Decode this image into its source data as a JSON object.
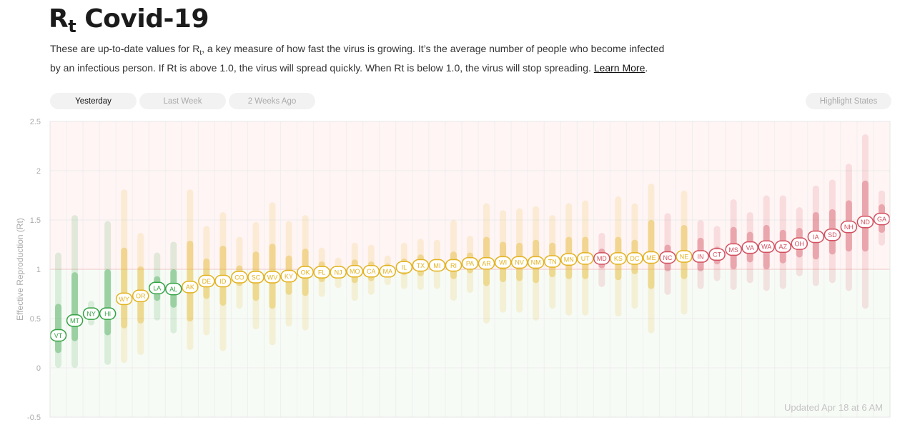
{
  "header": {
    "title_main": "R",
    "title_sub": "t",
    "title_rest": " Covid-19",
    "desc_part1": "These are up-to-date values for R",
    "desc_sub": "t",
    "desc_part2": ", a key measure of how fast the virus is growing. It’s the average number of people who become infected by an infectious person. If Rt is above 1.0, the virus will spread quickly. When Rt is below 1.0, the virus will stop spreading. ",
    "learn_more": "Learn More",
    "desc_end": "."
  },
  "controls": {
    "yesterday": "Yesterday",
    "last_week": "Last Week",
    "two_weeks": "2 Weeks Ago",
    "highlight": "Highlight States"
  },
  "colors": {
    "green": "#35a345",
    "yellow": "#e3b21f",
    "red": "#d2505f"
  },
  "chart_data": {
    "type": "scatter",
    "ylabel": "Effective Reproduction (Rt)",
    "ylim": [
      -0.5,
      2.5
    ],
    "yticks": [
      -0.5,
      0,
      0.5,
      1,
      1.5,
      2,
      2.5
    ],
    "ytick_labels": [
      "-0.5",
      "0",
      "0.5",
      "1",
      "1.5",
      "2",
      "2.5"
    ],
    "reference_line": 1,
    "updated": "Updated Apr 18 at 6 AM",
    "states": [
      {
        "state": "VT",
        "rt": 0.33,
        "hi50": 0.65,
        "lo50": 0.15,
        "hi90": 1.17,
        "lo90": 0.0,
        "color": "green"
      },
      {
        "state": "MT",
        "rt": 0.48,
        "hi50": 0.97,
        "lo50": 0.27,
        "hi90": 1.55,
        "lo90": 0.0,
        "color": "green"
      },
      {
        "state": "NY",
        "rt": 0.55,
        "hi50": 0.6,
        "lo50": 0.5,
        "hi90": 0.68,
        "lo90": 0.43,
        "color": "green"
      },
      {
        "state": "HI",
        "rt": 0.55,
        "hi50": 1.0,
        "lo50": 0.33,
        "hi90": 1.49,
        "lo90": 0.03,
        "color": "green"
      },
      {
        "state": "WY",
        "rt": 0.7,
        "hi50": 1.22,
        "lo50": 0.4,
        "hi90": 1.81,
        "lo90": 0.05,
        "color": "yellow"
      },
      {
        "state": "OR",
        "rt": 0.73,
        "hi50": 1.03,
        "lo50": 0.45,
        "hi90": 1.37,
        "lo90": 0.13,
        "color": "yellow"
      },
      {
        "state": "LA",
        "rt": 0.81,
        "hi50": 0.93,
        "lo50": 0.68,
        "hi90": 1.17,
        "lo90": 0.48,
        "color": "green"
      },
      {
        "state": "AL",
        "rt": 0.8,
        "hi50": 1.0,
        "lo50": 0.61,
        "hi90": 1.28,
        "lo90": 0.35,
        "color": "green"
      },
      {
        "state": "AK",
        "rt": 0.82,
        "hi50": 1.29,
        "lo50": 0.47,
        "hi90": 1.81,
        "lo90": 0.18,
        "color": "yellow"
      },
      {
        "state": "DE",
        "rt": 0.88,
        "hi50": 1.11,
        "lo50": 0.7,
        "hi90": 1.44,
        "lo90": 0.33,
        "color": "yellow"
      },
      {
        "state": "ID",
        "rt": 0.88,
        "hi50": 1.24,
        "lo50": 0.63,
        "hi90": 1.58,
        "lo90": 0.17,
        "color": "yellow"
      },
      {
        "state": "CO",
        "rt": 0.92,
        "hi50": 1.04,
        "lo50": 0.83,
        "hi90": 1.33,
        "lo90": 0.6,
        "color": "yellow"
      },
      {
        "state": "SC",
        "rt": 0.92,
        "hi50": 1.18,
        "lo50": 0.68,
        "hi90": 1.48,
        "lo90": 0.39,
        "color": "yellow"
      },
      {
        "state": "WV",
        "rt": 0.92,
        "hi50": 1.26,
        "lo50": 0.6,
        "hi90": 1.68,
        "lo90": 0.23,
        "color": "yellow"
      },
      {
        "state": "KY",
        "rt": 0.93,
        "hi50": 1.14,
        "lo50": 0.74,
        "hi90": 1.49,
        "lo90": 0.42,
        "color": "yellow"
      },
      {
        "state": "OK",
        "rt": 0.97,
        "hi50": 1.21,
        "lo50": 0.73,
        "hi90": 1.55,
        "lo90": 0.38,
        "color": "yellow"
      },
      {
        "state": "FL",
        "rt": 0.97,
        "hi50": 1.08,
        "lo50": 0.87,
        "hi90": 1.22,
        "lo90": 0.72,
        "color": "yellow"
      },
      {
        "state": "NJ",
        "rt": 0.97,
        "hi50": 1.03,
        "lo50": 0.91,
        "hi90": 1.12,
        "lo90": 0.81,
        "color": "yellow"
      },
      {
        "state": "MO",
        "rt": 0.98,
        "hi50": 1.1,
        "lo50": 0.86,
        "hi90": 1.27,
        "lo90": 0.68,
        "color": "yellow"
      },
      {
        "state": "CA",
        "rt": 0.98,
        "hi50": 1.08,
        "lo50": 0.88,
        "hi90": 1.25,
        "lo90": 0.74,
        "color": "yellow"
      },
      {
        "state": "MA",
        "rt": 0.98,
        "hi50": 1.06,
        "lo50": 0.93,
        "hi90": 1.14,
        "lo90": 0.84,
        "color": "yellow"
      },
      {
        "state": "IL",
        "rt": 1.02,
        "hi50": 1.11,
        "lo50": 0.94,
        "hi90": 1.27,
        "lo90": 0.8,
        "color": "yellow"
      },
      {
        "state": "TX",
        "rt": 1.04,
        "hi50": 1.15,
        "lo50": 0.93,
        "hi90": 1.31,
        "lo90": 0.79,
        "color": "yellow"
      },
      {
        "state": "MI",
        "rt": 1.04,
        "hi50": 1.1,
        "lo50": 0.98,
        "hi90": 1.3,
        "lo90": 0.8,
        "color": "yellow"
      },
      {
        "state": "RI",
        "rt": 1.04,
        "hi50": 1.18,
        "lo50": 0.9,
        "hi90": 1.5,
        "lo90": 0.68,
        "color": "yellow"
      },
      {
        "state": "PA",
        "rt": 1.06,
        "hi50": 1.17,
        "lo50": 0.96,
        "hi90": 1.34,
        "lo90": 0.76,
        "color": "yellow"
      },
      {
        "state": "AR",
        "rt": 1.06,
        "hi50": 1.33,
        "lo50": 0.83,
        "hi90": 1.67,
        "lo90": 0.45,
        "color": "yellow"
      },
      {
        "state": "WI",
        "rt": 1.07,
        "hi50": 1.28,
        "lo50": 0.87,
        "hi90": 1.6,
        "lo90": 0.56,
        "color": "yellow"
      },
      {
        "state": "NV",
        "rt": 1.07,
        "hi50": 1.27,
        "lo50": 0.88,
        "hi90": 1.62,
        "lo90": 0.56,
        "color": "yellow"
      },
      {
        "state": "NM",
        "rt": 1.07,
        "hi50": 1.3,
        "lo50": 0.86,
        "hi90": 1.64,
        "lo90": 0.48,
        "color": "yellow"
      },
      {
        "state": "TN",
        "rt": 1.08,
        "hi50": 1.27,
        "lo50": 0.92,
        "hi90": 1.55,
        "lo90": 0.6,
        "color": "yellow"
      },
      {
        "state": "MN",
        "rt": 1.1,
        "hi50": 1.33,
        "lo50": 0.9,
        "hi90": 1.67,
        "lo90": 0.53,
        "color": "yellow"
      },
      {
        "state": "UT",
        "rt": 1.11,
        "hi50": 1.33,
        "lo50": 0.9,
        "hi90": 1.7,
        "lo90": 0.53,
        "color": "yellow"
      },
      {
        "state": "MD",
        "rt": 1.11,
        "hi50": 1.21,
        "lo50": 1.01,
        "hi90": 1.37,
        "lo90": 0.82,
        "color": "red"
      },
      {
        "state": "KS",
        "rt": 1.11,
        "hi50": 1.33,
        "lo50": 0.89,
        "hi90": 1.74,
        "lo90": 0.52,
        "color": "yellow"
      },
      {
        "state": "DC",
        "rt": 1.11,
        "hi50": 1.3,
        "lo50": 0.95,
        "hi90": 1.67,
        "lo90": 0.6,
        "color": "yellow"
      },
      {
        "state": "ME",
        "rt": 1.12,
        "hi50": 1.5,
        "lo50": 0.8,
        "hi90": 1.87,
        "lo90": 0.35,
        "color": "yellow"
      },
      {
        "state": "NC",
        "rt": 1.12,
        "hi50": 1.25,
        "lo50": 0.98,
        "hi90": 1.57,
        "lo90": 0.74,
        "color": "red"
      },
      {
        "state": "NE",
        "rt": 1.13,
        "hi50": 1.45,
        "lo50": 0.9,
        "hi90": 1.8,
        "lo90": 0.54,
        "color": "yellow"
      },
      {
        "state": "IN",
        "rt": 1.13,
        "hi50": 1.32,
        "lo50": 0.98,
        "hi90": 1.5,
        "lo90": 0.8,
        "color": "red"
      },
      {
        "state": "CT",
        "rt": 1.15,
        "hi50": 1.23,
        "lo50": 1.05,
        "hi90": 1.44,
        "lo90": 0.88,
        "color": "red"
      },
      {
        "state": "MS",
        "rt": 1.2,
        "hi50": 1.43,
        "lo50": 1.0,
        "hi90": 1.71,
        "lo90": 0.79,
        "color": "red"
      },
      {
        "state": "VA",
        "rt": 1.22,
        "hi50": 1.38,
        "lo50": 1.07,
        "hi90": 1.58,
        "lo90": 0.86,
        "color": "red"
      },
      {
        "state": "WA",
        "rt": 1.23,
        "hi50": 1.45,
        "lo50": 1.0,
        "hi90": 1.75,
        "lo90": 0.78,
        "color": "red"
      },
      {
        "state": "AZ",
        "rt": 1.23,
        "hi50": 1.4,
        "lo50": 1.06,
        "hi90": 1.75,
        "lo90": 0.8,
        "color": "red"
      },
      {
        "state": "OH",
        "rt": 1.26,
        "hi50": 1.42,
        "lo50": 1.12,
        "hi90": 1.63,
        "lo90": 0.93,
        "color": "red"
      },
      {
        "state": "IA",
        "rt": 1.33,
        "hi50": 1.58,
        "lo50": 1.1,
        "hi90": 1.85,
        "lo90": 0.83,
        "color": "red"
      },
      {
        "state": "SD",
        "rt": 1.35,
        "hi50": 1.61,
        "lo50": 1.15,
        "hi90": 1.91,
        "lo90": 0.86,
        "color": "red"
      },
      {
        "state": "NH",
        "rt": 1.43,
        "hi50": 1.7,
        "lo50": 1.18,
        "hi90": 2.07,
        "lo90": 0.78,
        "color": "red"
      },
      {
        "state": "ND",
        "rt": 1.48,
        "hi50": 1.9,
        "lo50": 1.18,
        "hi90": 2.37,
        "lo90": 0.6,
        "color": "red"
      },
      {
        "state": "GA",
        "rt": 1.51,
        "hi50": 1.66,
        "lo50": 1.37,
        "hi90": 1.8,
        "lo90": 1.24,
        "color": "red"
      }
    ]
  }
}
